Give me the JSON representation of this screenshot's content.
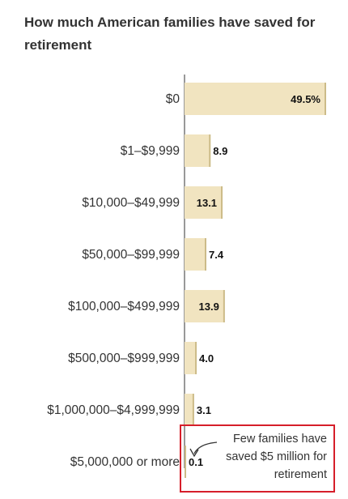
{
  "chart_data": {
    "type": "bar",
    "orientation": "horizontal",
    "title": "How much American families have saved for retirement",
    "categories": [
      "$0",
      "$1–$9,999",
      "$10,000–$49,999",
      "$50,000–$99,999",
      "$100,000–$499,999",
      "$500,000–$999,999",
      "$1,000,000–$4,999,999",
      "$5,000,000 or more"
    ],
    "values": [
      49.5,
      8.9,
      13.1,
      7.4,
      13.9,
      4.0,
      3.1,
      0.1
    ],
    "value_labels": [
      "49.5%",
      "8.9",
      "13.1",
      "7.4",
      "13.9",
      "4.0",
      "3.1",
      "0.1"
    ],
    "xlim": [
      0,
      49.5
    ],
    "grid": false,
    "bar_color": "#f1e4c0",
    "bar_edge_color": "#ccbb88",
    "annotation": {
      "text": "Few families have saved $5 million for retirement",
      "lines": [
        "Few families have",
        "saved $5 million for",
        "retirement"
      ],
      "target": "$5,000,000 or more",
      "highlight_color": "#d61e2a"
    }
  }
}
